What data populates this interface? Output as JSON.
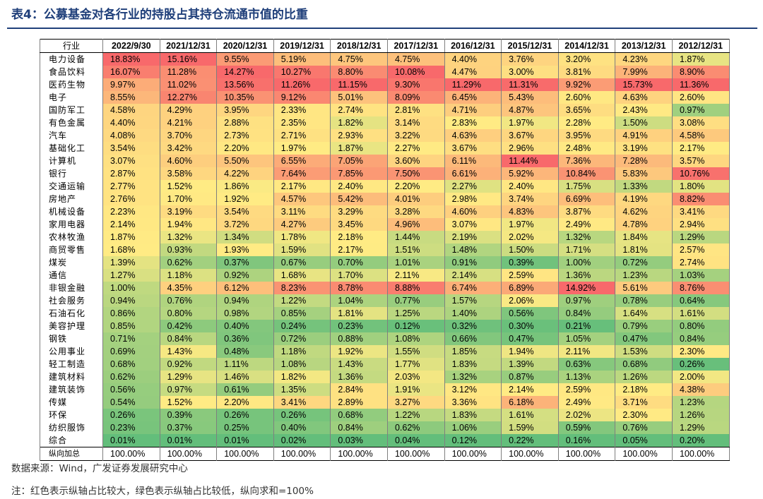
{
  "title": "表4：公募基金对各行业的持股占其持仓流通市值的比重",
  "table": {
    "category_header": "行业",
    "columns": [
      "2022/9/30",
      "2021/12/31",
      "2020/12/31",
      "2019/12/31",
      "2018/12/31",
      "2017/12/31",
      "2016/12/31",
      "2015/12/31",
      "2014/12/31",
      "2013/12/31",
      "2012/12/31"
    ],
    "rows": [
      {
        "name": "电力设备",
        "values": [
          "18.83%",
          "15.16%",
          "9.55%",
          "5.19%",
          "4.75%",
          "4.75%",
          "4.40%",
          "3.76%",
          "3.20%",
          "4.23%",
          "1.87%"
        ]
      },
      {
        "name": "食品饮料",
        "values": [
          "16.07%",
          "11.28%",
          "14.27%",
          "10.27%",
          "8.80%",
          "10.08%",
          "4.47%",
          "3.00%",
          "3.81%",
          "7.99%",
          "8.90%"
        ]
      },
      {
        "name": "医药生物",
        "values": [
          "9.97%",
          "11.02%",
          "13.56%",
          "11.26%",
          "11.15%",
          "9.30%",
          "11.29%",
          "11.31%",
          "9.92%",
          "15.73%",
          "11.36%"
        ]
      },
      {
        "name": "电子",
        "values": [
          "8.55%",
          "12.27%",
          "10.35%",
          "9.12%",
          "5.01%",
          "8.09%",
          "6.45%",
          "5.43%",
          "2.60%",
          "4.63%",
          "2.60%"
        ]
      },
      {
        "name": "国防军工",
        "values": [
          "4.58%",
          "4.29%",
          "3.95%",
          "2.33%",
          "2.74%",
          "2.81%",
          "4.71%",
          "4.87%",
          "3.65%",
          "2.43%",
          "0.97%"
        ]
      },
      {
        "name": "有色金属",
        "values": [
          "4.40%",
          "4.21%",
          "2.88%",
          "2.35%",
          "1.82%",
          "3.14%",
          "2.83%",
          "1.97%",
          "2.28%",
          "1.50%",
          "3.08%"
        ]
      },
      {
        "name": "汽车",
        "values": [
          "4.08%",
          "3.70%",
          "2.73%",
          "2.71%",
          "2.93%",
          "3.22%",
          "4.63%",
          "3.67%",
          "3.95%",
          "4.91%",
          "4.58%"
        ]
      },
      {
        "name": "基础化工",
        "values": [
          "3.54%",
          "3.42%",
          "2.20%",
          "1.97%",
          "1.87%",
          "2.27%",
          "3.67%",
          "2.96%",
          "2.48%",
          "3.19%",
          "2.17%"
        ]
      },
      {
        "name": "计算机",
        "values": [
          "3.07%",
          "4.60%",
          "5.50%",
          "6.55%",
          "7.05%",
          "3.60%",
          "6.11%",
          "11.44%",
          "7.36%",
          "7.28%",
          "3.57%"
        ]
      },
      {
        "name": "银行",
        "values": [
          "2.87%",
          "3.58%",
          "4.22%",
          "7.64%",
          "7.85%",
          "7.50%",
          "6.61%",
          "5.92%",
          "10.84%",
          "5.83%",
          "10.76%"
        ]
      },
      {
        "name": "交通运输",
        "values": [
          "2.77%",
          "1.52%",
          "1.86%",
          "2.17%",
          "2.40%",
          "2.20%",
          "2.27%",
          "2.40%",
          "1.75%",
          "1.33%",
          "1.80%"
        ]
      },
      {
        "name": "房地产",
        "values": [
          "2.76%",
          "1.70%",
          "1.92%",
          "4.57%",
          "5.42%",
          "4.01%",
          "2.98%",
          "3.74%",
          "6.69%",
          "4.19%",
          "8.82%"
        ]
      },
      {
        "name": "机械设备",
        "values": [
          "2.23%",
          "3.19%",
          "3.54%",
          "3.11%",
          "3.29%",
          "3.28%",
          "4.60%",
          "4.83%",
          "3.87%",
          "4.62%",
          "3.41%"
        ]
      },
      {
        "name": "家用电器",
        "values": [
          "2.14%",
          "1.94%",
          "3.72%",
          "4.27%",
          "3.45%",
          "4.96%",
          "3.07%",
          "1.97%",
          "2.49%",
          "4.78%",
          "2.94%"
        ]
      },
      {
        "name": "农林牧渔",
        "values": [
          "1.87%",
          "1.32%",
          "1.34%",
          "1.78%",
          "2.18%",
          "1.44%",
          "2.19%",
          "2.02%",
          "1.32%",
          "1.84%",
          "1.29%"
        ]
      },
      {
        "name": "商贸零售",
        "values": [
          "1.68%",
          "0.93%",
          "1.93%",
          "1.59%",
          "2.17%",
          "1.51%",
          "1.48%",
          "1.50%",
          "1.71%",
          "1.81%",
          "2.57%"
        ]
      },
      {
        "name": "煤炭",
        "values": [
          "1.39%",
          "0.62%",
          "0.37%",
          "0.67%",
          "0.70%",
          "1.01%",
          "0.91%",
          "0.39%",
          "1.00%",
          "0.72%",
          "2.74%"
        ]
      },
      {
        "name": "通信",
        "values": [
          "1.27%",
          "1.18%",
          "0.92%",
          "1.68%",
          "1.70%",
          "2.11%",
          "2.14%",
          "2.59%",
          "1.36%",
          "1.23%",
          "1.03%"
        ]
      },
      {
        "name": "非银金融",
        "values": [
          "1.00%",
          "4.35%",
          "6.12%",
          "8.23%",
          "8.78%",
          "8.88%",
          "6.74%",
          "6.89%",
          "14.92%",
          "5.61%",
          "8.76%"
        ]
      },
      {
        "name": "社会服务",
        "values": [
          "0.94%",
          "0.76%",
          "0.94%",
          "1.22%",
          "1.04%",
          "0.77%",
          "1.57%",
          "2.06%",
          "0.97%",
          "0.78%",
          "0.64%"
        ]
      },
      {
        "name": "石油石化",
        "values": [
          "0.86%",
          "0.80%",
          "0.98%",
          "0.85%",
          "1.81%",
          "1.25%",
          "1.40%",
          "0.56%",
          "0.84%",
          "1.64%",
          "1.61%"
        ]
      },
      {
        "name": "美容护理",
        "values": [
          "0.85%",
          "0.42%",
          "0.40%",
          "0.24%",
          "0.23%",
          "0.12%",
          "0.32%",
          "0.30%",
          "0.21%",
          "0.79%",
          "0.80%"
        ]
      },
      {
        "name": "钢铁",
        "values": [
          "0.71%",
          "0.84%",
          "0.36%",
          "0.72%",
          "0.88%",
          "1.08%",
          "0.66%",
          "0.47%",
          "1.05%",
          "0.47%",
          "0.84%"
        ]
      },
      {
        "name": "公用事业",
        "values": [
          "0.69%",
          "1.43%",
          "0.48%",
          "1.18%",
          "1.92%",
          "1.55%",
          "1.85%",
          "1.94%",
          "2.11%",
          "1.53%",
          "2.30%"
        ]
      },
      {
        "name": "轻工制造",
        "values": [
          "0.68%",
          "0.92%",
          "1.11%",
          "1.08%",
          "1.43%",
          "1.77%",
          "1.83%",
          "1.39%",
          "0.63%",
          "0.68%",
          "0.26%"
        ]
      },
      {
        "name": "建筑材料",
        "values": [
          "0.62%",
          "1.29%",
          "1.46%",
          "1.82%",
          "1.36%",
          "2.03%",
          "1.32%",
          "0.87%",
          "1.13%",
          "1.26%",
          "2.00%"
        ]
      },
      {
        "name": "建筑装饰",
        "values": [
          "0.56%",
          "0.97%",
          "0.61%",
          "1.35%",
          "2.84%",
          "1.91%",
          "3.12%",
          "2.14%",
          "2.59%",
          "2.18%",
          "4.38%"
        ]
      },
      {
        "name": "传媒",
        "values": [
          "0.54%",
          "1.52%",
          "2.20%",
          "3.41%",
          "2.89%",
          "3.27%",
          "3.36%",
          "6.18%",
          "2.49%",
          "3.71%",
          "1.23%"
        ]
      },
      {
        "name": "环保",
        "values": [
          "0.26%",
          "0.39%",
          "0.26%",
          "0.26%",
          "0.68%",
          "1.22%",
          "1.83%",
          "1.61%",
          "2.02%",
          "2.30%",
          "1.26%"
        ]
      },
      {
        "name": "纺织服饰",
        "values": [
          "0.23%",
          "0.37%",
          "0.25%",
          "0.40%",
          "0.84%",
          "0.62%",
          "1.06%",
          "1.59%",
          "0.59%",
          "0.76%",
          "1.29%"
        ]
      },
      {
        "name": "综合",
        "values": [
          "0.01%",
          "0.01%",
          "0.01%",
          "0.02%",
          "0.03%",
          "0.04%",
          "0.12%",
          "0.22%",
          "0.16%",
          "0.05%",
          "0.20%"
        ]
      }
    ],
    "total_row": {
      "name": "纵向加总",
      "values": [
        "100.00%",
        "100.00%",
        "100.00%",
        "100.00%",
        "100.00%",
        "100.00%",
        "100.00%",
        "100.00%",
        "100.00%",
        "100.00%",
        "100.00%"
      ]
    }
  },
  "source": "数据来源：Wind，广发证券发展研究中心",
  "note": "注：红色表示纵轴占比较大，绿色表示纵轴占比较低，纵向求和=100%",
  "colors": {
    "title": "#1f3f7a",
    "low": "#63be7b",
    "mid": "#ffeb84",
    "high": "#f8696b"
  }
}
